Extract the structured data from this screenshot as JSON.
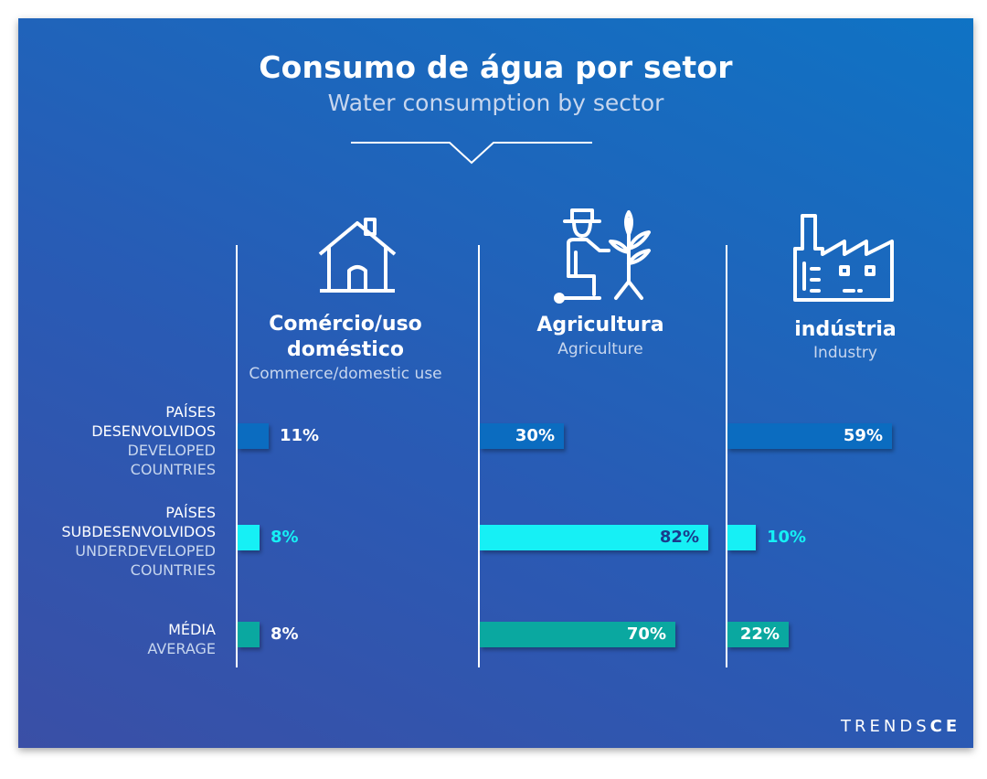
{
  "header": {
    "title": "Consumo de água por setor",
    "subtitle": "Water consumption by sector"
  },
  "logo": {
    "text_light": "TRENDS",
    "text_bold": "CE"
  },
  "colors": {
    "developed": "#0b6cc0",
    "underdeveloped": "#16f0f5",
    "average": "#0aa8a0",
    "label_on_dark_bar": "#ffffff",
    "label_on_light_bar": "#1a3b8c",
    "label_outside_underdeveloped": "#16f0f5",
    "label_outside_default": "#ffffff"
  },
  "icons": [
    "house-icon",
    "farmer-icon",
    "factory-icon"
  ],
  "chart_data": {
    "type": "bar",
    "orientation": "horizontal",
    "title": "Consumo de água por setor",
    "subtitle": "Water consumption by sector",
    "categories": [
      {
        "pt_line1": "PAÍSES",
        "pt_line2": "DESENVOLVIDOS",
        "en_line1": "DEVELOPED",
        "en_line2": "COUNTRIES"
      },
      {
        "pt_line1": "PAÍSES",
        "pt_line2": "SUBDESENVOLVIDOS",
        "en_line1": "UNDERDEVELOPED",
        "en_line2": "COUNTRIES"
      },
      {
        "pt_line1": "MÉDIA",
        "pt_line2": "",
        "en_line1": "AVERAGE",
        "en_line2": ""
      }
    ],
    "sectors": [
      {
        "title_line1": "Comércio/uso",
        "title_line2": "doméstico",
        "subtitle": "Commerce/domestic use",
        "values": [
          11,
          8,
          8
        ],
        "labels": [
          "11%",
          "8%",
          "8%"
        ]
      },
      {
        "title_line1": "Agricultura",
        "title_line2": "",
        "subtitle": "Agriculture",
        "values": [
          30,
          82,
          70
        ],
        "labels": [
          "30%",
          "82%",
          "70%"
        ]
      },
      {
        "title_line1": "indústria",
        "title_line2": "",
        "subtitle": "Industry",
        "values": [
          59,
          10,
          22
        ],
        "labels": [
          "59%",
          "10%",
          "22%"
        ]
      }
    ],
    "xlim": [
      0,
      100
    ],
    "grid": false,
    "legend": "none"
  }
}
